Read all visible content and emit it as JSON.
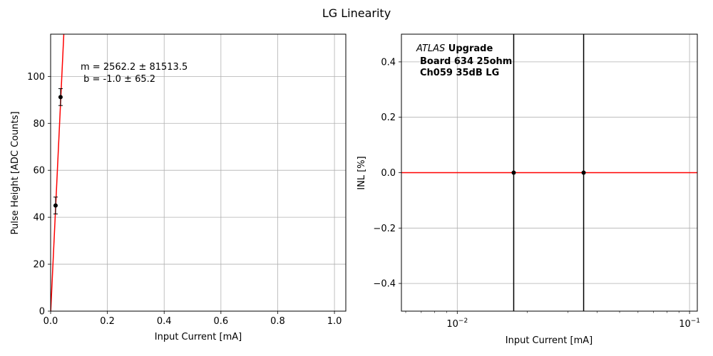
{
  "figure": {
    "suptitle": "LG Linearity"
  },
  "chart_data": [
    {
      "type": "scatter",
      "xlabel": "Input Current [mA]",
      "ylabel": "Pulse Height [ADC Counts]",
      "xlim": [
        0.0,
        1.04
      ],
      "ylim": [
        0,
        118
      ],
      "xticks": [
        0.0,
        0.2,
        0.4,
        0.6,
        0.8,
        1.0
      ],
      "xtick_labels": [
        "0.0",
        "0.2",
        "0.4",
        "0.6",
        "0.8",
        "1.0"
      ],
      "yticks": [
        0,
        20,
        40,
        60,
        80,
        100
      ],
      "ytick_labels": [
        "0",
        "20",
        "40",
        "60",
        "80",
        "100"
      ],
      "grid": true,
      "series": [
        {
          "points": [
            {
              "x": 0.0175,
              "y": 45,
              "yerr": 3.6
            },
            {
              "x": 0.035,
              "y": 91.2,
              "yerr": 3.6
            }
          ],
          "color": "#000000"
        }
      ],
      "fit": {
        "slope": 2562.2,
        "intercept": -1.0,
        "color": "#ff0000"
      },
      "annotations": {
        "fit_m": "m = 2562.2 ± 81513.5",
        "fit_b": " b = -1.0 ± 65.2"
      }
    },
    {
      "type": "scatter",
      "xscale": "log",
      "xlabel": "Input Current [mA]",
      "ylabel": "INL [%]",
      "xlim": [
        0.00575,
        0.108
      ],
      "ylim": [
        -0.5,
        0.5
      ],
      "yticks": [
        -0.4,
        -0.2,
        0.0,
        0.2,
        0.4
      ],
      "ytick_labels": [
        "−0.4",
        "−0.2",
        "0.0",
        "0.2",
        "0.4"
      ],
      "xtick_major": [
        0.01,
        0.1
      ],
      "xtick_major_bases": [
        "10",
        "10"
      ],
      "xtick_major_exps": [
        "−2",
        "−1"
      ],
      "grid": true,
      "series": [
        {
          "points": [
            {
              "x": 0.0175,
              "y": 0.0
            },
            {
              "x": 0.035,
              "y": 0.0
            }
          ],
          "color": "#000000"
        }
      ],
      "reference_line": {
        "y": 0.0,
        "color": "#ff0000"
      },
      "annotations": {
        "experiment": "ATLAS",
        "status": " Upgrade",
        "board": "Board 634 25ohm",
        "channel": "Ch059 35dB LG"
      }
    }
  ]
}
